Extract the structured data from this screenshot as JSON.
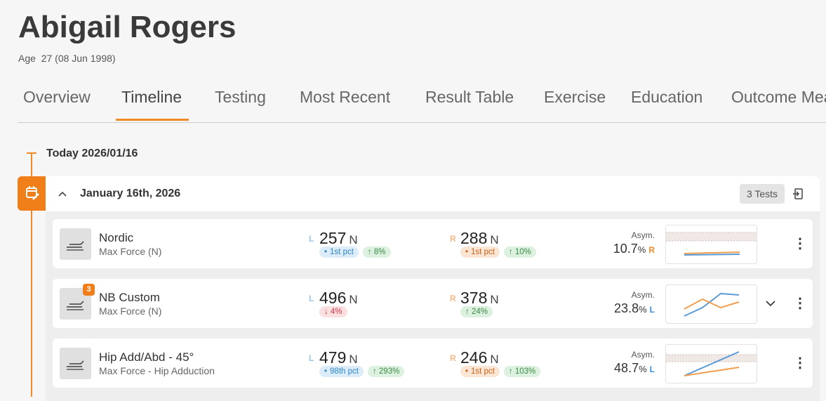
{
  "header": {
    "name": "Abigail Rogers",
    "age_label": "Age",
    "age": "27 (08 Jun 1998)"
  },
  "tabs": [
    "Overview",
    "Timeline",
    "Testing",
    "Most Recent",
    "Result Table",
    "Exercise",
    "Education",
    "Outcome Measures"
  ],
  "active_tab": 1,
  "timeline": {
    "today": "Today 2026/01/16"
  },
  "session": {
    "date": "January 16th, 2026",
    "tests": "3 Tests",
    "rows": [
      {
        "name": "Nordic",
        "metric": "Max Force (N)",
        "badge_count": null,
        "left": {
          "side": "L",
          "value": 257,
          "unit": "N",
          "badges": [
            {
              "text": "1st pct",
              "color": "blue"
            },
            {
              "text": "↑ 8%",
              "color": "green"
            }
          ]
        },
        "right": {
          "side": "R",
          "value": 288,
          "unit": "N",
          "badges": [
            {
              "text": "1st pct",
              "color": "orange"
            },
            {
              "text": "↑ 10%",
              "color": "green"
            }
          ]
        },
        "asym_label": "Asym.",
        "asym": 10.7,
        "asym_unit": "%",
        "asym_side": "R"
      },
      {
        "name": "NB Custom",
        "metric": "Max Force (N)",
        "badge_count": 3,
        "left": {
          "side": "L",
          "value": 496,
          "unit": "N",
          "badges": [
            {
              "text": "↓ 4%",
              "color": "red"
            }
          ]
        },
        "right": {
          "side": "R",
          "value": 378,
          "unit": "N",
          "badges": [
            {
              "text": "↑ 24%",
              "color": "green"
            }
          ]
        },
        "asym_label": "Asym.",
        "asym": 23.8,
        "asym_unit": "%",
        "asym_side": "L"
      },
      {
        "name": "Hip Add/Abd - 45°",
        "metric": "Max Force - Hip Adduction",
        "badge_count": null,
        "left": {
          "side": "L",
          "value": 479,
          "unit": "N",
          "badges": [
            {
              "text": "98th pct",
              "color": "blue"
            },
            {
              "text": "↑ 293%",
              "color": "green"
            }
          ]
        },
        "right": {
          "side": "R",
          "value": 246,
          "unit": "N",
          "badges": [
            {
              "text": "1st pct",
              "color": "orange"
            },
            {
              "text": "↑ 103%",
              "color": "green"
            }
          ]
        },
        "asym_label": "Asym.",
        "asym": 48.7,
        "asym_unit": "%",
        "asym_side": "L"
      }
    ]
  }
}
